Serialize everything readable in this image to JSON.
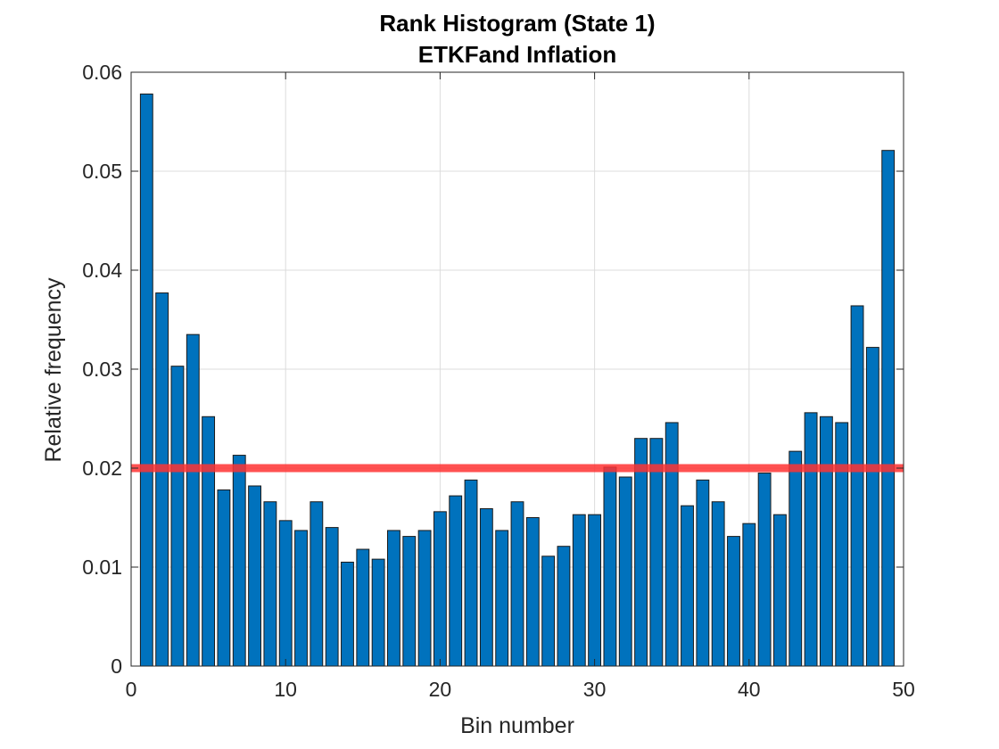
{
  "chart_data": {
    "type": "bar",
    "title": "Rank Histogram (State 1)",
    "subtitle": "ETKFand Inflation",
    "xlabel": "Bin number",
    "ylabel": "Relative frequency",
    "xlim": [
      0,
      50
    ],
    "ylim": [
      0,
      0.06
    ],
    "xticks": [
      0,
      10,
      20,
      30,
      40,
      50
    ],
    "xtick_labels": [
      "0",
      "10",
      "20",
      "30",
      "40",
      "50"
    ],
    "yticks": [
      0,
      0.01,
      0.02,
      0.03,
      0.04,
      0.05,
      0.06
    ],
    "ytick_labels": [
      "0",
      "0.01",
      "0.02",
      "0.03",
      "0.04",
      "0.05",
      "0.06"
    ],
    "grid": true,
    "bar_color": "#0072BD",
    "reference_line": {
      "y": 0.02,
      "color": "#ff3333"
    },
    "x": [
      1,
      2,
      3,
      4,
      5,
      6,
      7,
      8,
      9,
      10,
      11,
      12,
      13,
      14,
      15,
      16,
      17,
      18,
      19,
      20,
      21,
      22,
      23,
      24,
      25,
      26,
      27,
      28,
      29,
      30,
      31,
      32,
      33,
      34,
      35,
      36,
      37,
      38,
      39,
      40,
      41,
      42,
      43,
      44,
      45,
      46,
      47,
      48,
      49
    ],
    "values": [
      0.0578,
      0.0377,
      0.0303,
      0.0335,
      0.0252,
      0.0178,
      0.0213,
      0.0182,
      0.0166,
      0.0147,
      0.0137,
      0.0166,
      0.014,
      0.0105,
      0.0118,
      0.0108,
      0.0137,
      0.0131,
      0.0137,
      0.0156,
      0.0172,
      0.0188,
      0.0159,
      0.0137,
      0.0166,
      0.015,
      0.0111,
      0.0121,
      0.0153,
      0.0153,
      0.0201,
      0.0191,
      0.023,
      0.023,
      0.0246,
      0.0162,
      0.0188,
      0.0166,
      0.0131,
      0.0144,
      0.0195,
      0.0153,
      0.0217,
      0.0256,
      0.0252,
      0.0246,
      0.0364,
      0.0322,
      0.0521
    ]
  }
}
